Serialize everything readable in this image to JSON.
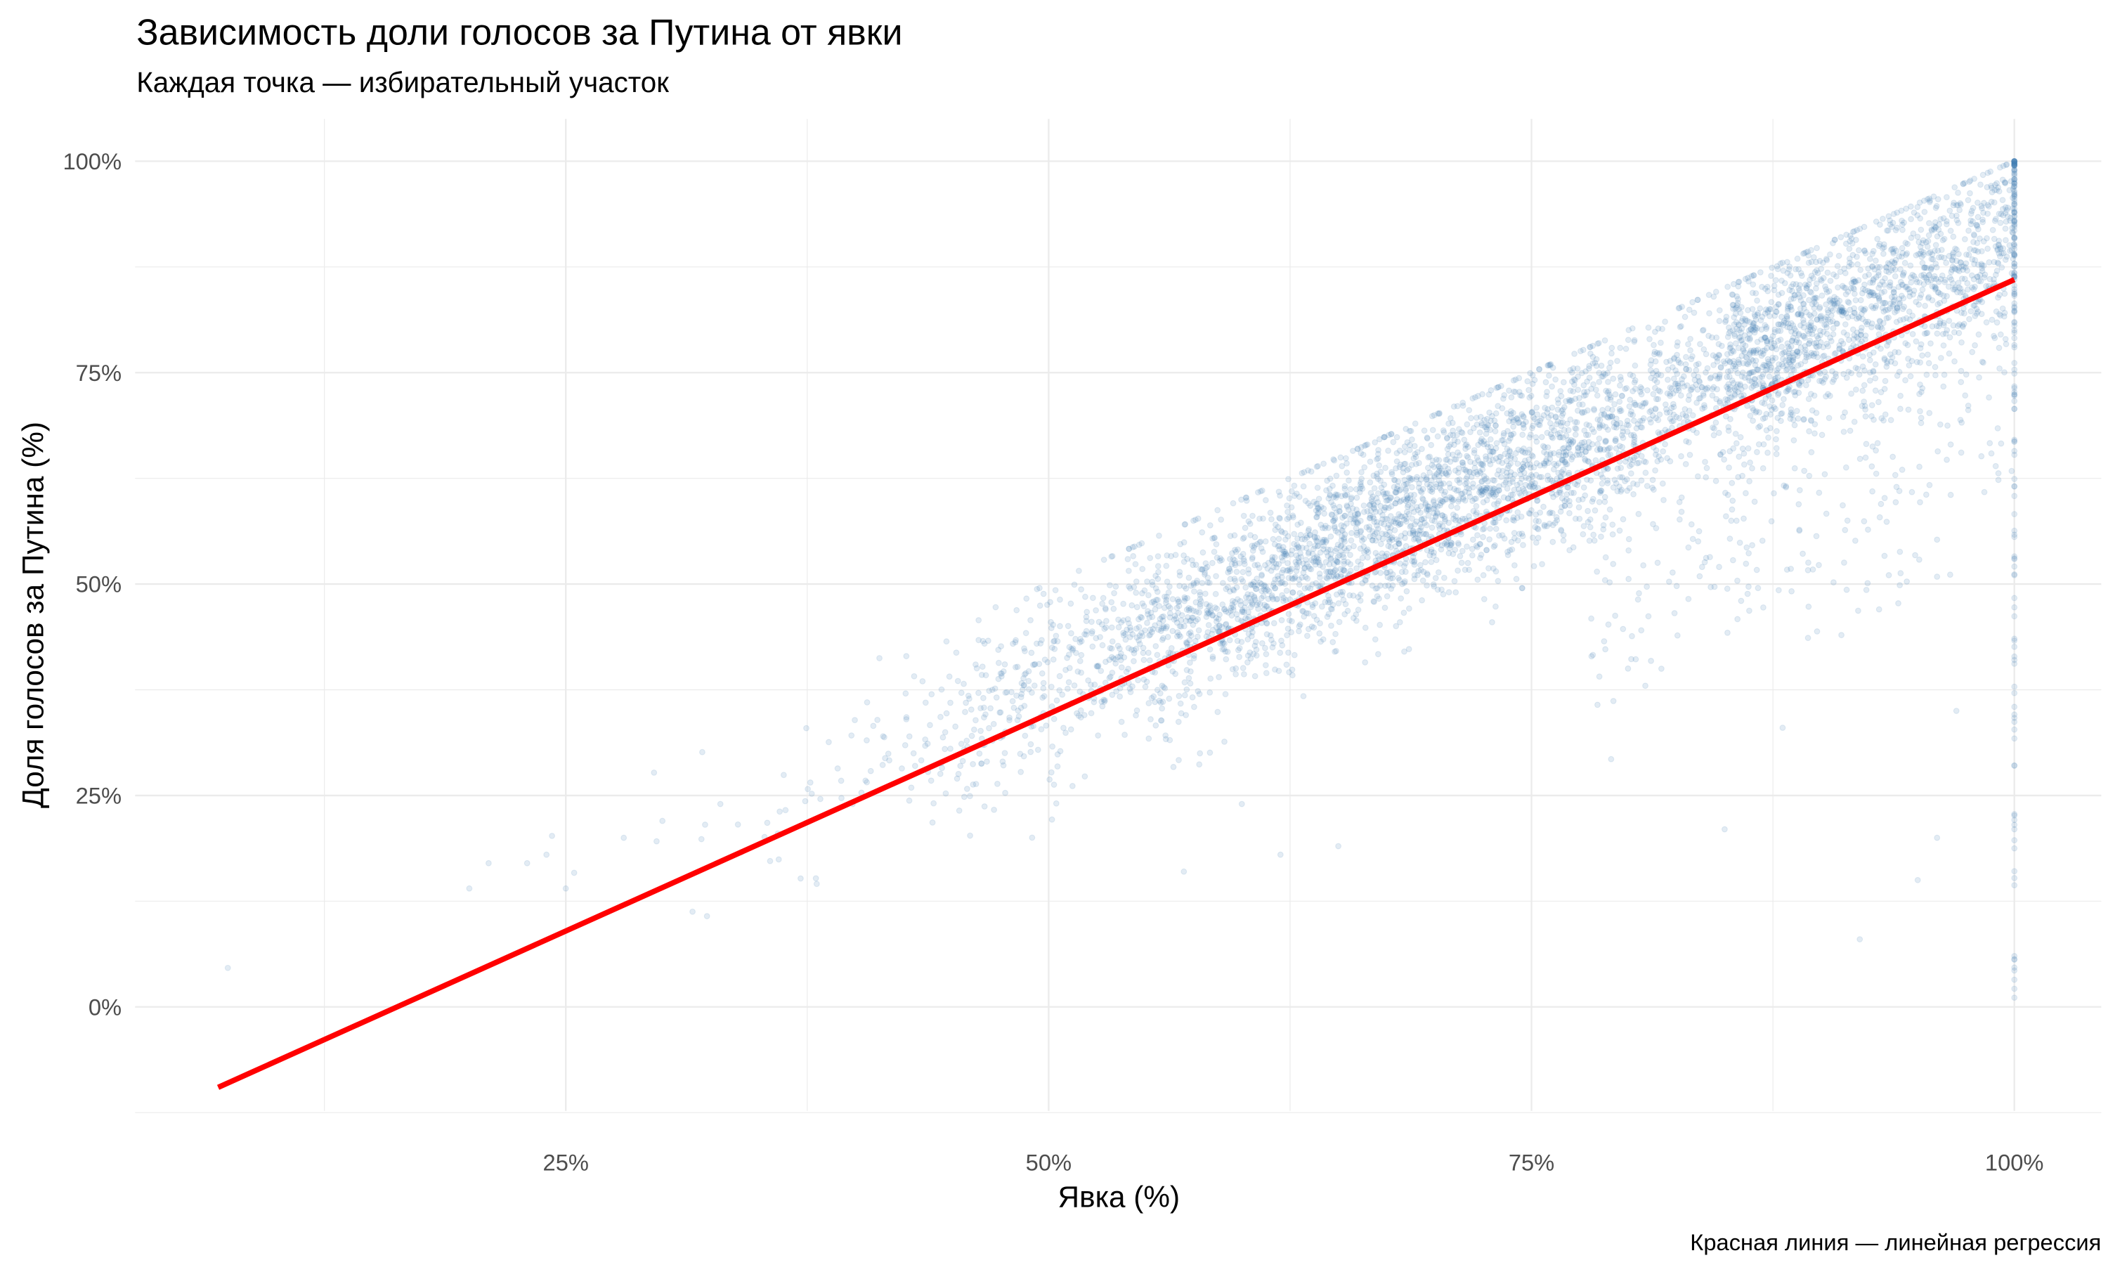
{
  "chart_data": {
    "type": "scatter",
    "title": "Зависимость доли голосов за Путина от явки",
    "subtitle": "Каждая точка — избирательный участок",
    "xlabel": "Явка (%)",
    "ylabel": "Доля голосов за Путина (%)",
    "caption": "Красная линия — линейная регрессия",
    "xlim": [
      2.7,
      104.5
    ],
    "ylim": [
      -12.3,
      105
    ],
    "x_ticks": [
      {
        "value": 25,
        "label": "25%"
      },
      {
        "value": 50,
        "label": "50%"
      },
      {
        "value": 75,
        "label": "75%"
      },
      {
        "value": 100,
        "label": "100%"
      }
    ],
    "y_ticks": [
      {
        "value": 0,
        "label": "0%"
      },
      {
        "value": 25,
        "label": "25%"
      },
      {
        "value": 50,
        "label": "50%"
      },
      {
        "value": 75,
        "label": "75%"
      },
      {
        "value": 100,
        "label": "100%"
      }
    ],
    "grid": true,
    "point_color": "#4682B4",
    "point_alpha": 0.15,
    "line_color": "#FF0000",
    "regression": {
      "x_start": 7,
      "x_end": 100,
      "slope": 1.027,
      "intercept": -16.7
    },
    "cloud_model": {
      "n": 5000,
      "x_mean": 70,
      "x_sd": 13,
      "x_min": 20,
      "x_max": 100,
      "y_slope": 1.05,
      "y_intercept": -14,
      "y_sd": 5.5,
      "y_cap_over_x": 1.0
    },
    "column_at_100": {
      "n": 140,
      "y_min": 0,
      "y_max": 100
    },
    "sample_outliers": [
      [
        7.5,
        4.6
      ],
      [
        20,
        14
      ],
      [
        21,
        17
      ],
      [
        23,
        17
      ],
      [
        24,
        18
      ],
      [
        25,
        14
      ],
      [
        28,
        20
      ],
      [
        30,
        22
      ],
      [
        33,
        24
      ],
      [
        60,
        24
      ],
      [
        62,
        18
      ],
      [
        65,
        19
      ],
      [
        57,
        16
      ],
      [
        85,
        21
      ],
      [
        92,
        8
      ],
      [
        95,
        15
      ],
      [
        96,
        20
      ],
      [
        97,
        35
      ],
      [
        93,
        47
      ],
      [
        88,
        33
      ],
      [
        80,
        40
      ]
    ]
  }
}
